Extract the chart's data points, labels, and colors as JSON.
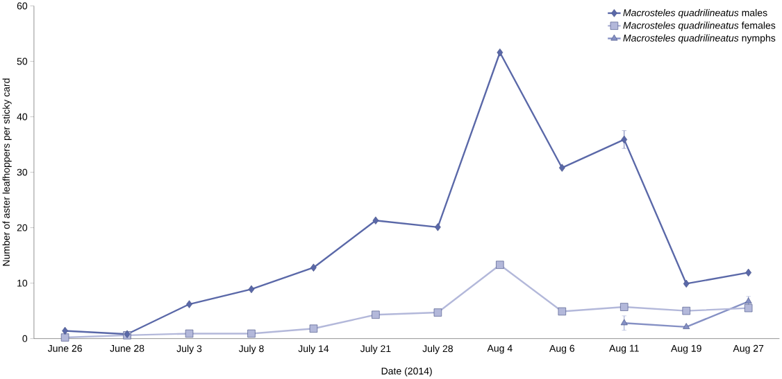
{
  "chart_data": {
    "type": "line",
    "xlabel": "Date (2014)",
    "ylabel": "Number of aster leafhoppers per sticky card",
    "categories": [
      "June 26",
      "June 28",
      "July 3",
      "July 8",
      "July 14",
      "July 21",
      "July 28",
      "Aug 4",
      "Aug 6",
      "Aug 11",
      "Aug 19",
      "Aug 27"
    ],
    "ylim": [
      0,
      60
    ],
    "yticks": [
      0,
      10,
      20,
      30,
      40,
      50,
      60
    ],
    "grid": false,
    "legend": "top right",
    "series": [
      {
        "name": "*Macrosteles quadrilineatus* males",
        "color": "#5a68a8",
        "marker": "diamond",
        "values": [
          1.4,
          0.8,
          6.2,
          8.9,
          12.8,
          21.3,
          20.1,
          51.6,
          30.8,
          35.9,
          9.9,
          11.9
        ],
        "errors": [
          null,
          null,
          null,
          null,
          null,
          null,
          null,
          null,
          null,
          1.6,
          null,
          null
        ]
      },
      {
        "name": "*Macrosteles quadrilineatus* females",
        "color": "#b3b8da",
        "marker": "square",
        "values": [
          0.2,
          0.6,
          0.9,
          0.9,
          1.8,
          4.3,
          4.7,
          13.3,
          4.9,
          5.7,
          5.0,
          5.5
        ]
      },
      {
        "name": "*Macrosteles quadrilineatus* nymphs",
        "color": "#8590c4",
        "marker": "triangle",
        "values": [
          null,
          null,
          null,
          null,
          null,
          null,
          null,
          null,
          null,
          2.8,
          2.1,
          6.7
        ],
        "errors": [
          null,
          null,
          null,
          null,
          null,
          null,
          null,
          null,
          null,
          1.3,
          null,
          0.9
        ]
      }
    ]
  }
}
